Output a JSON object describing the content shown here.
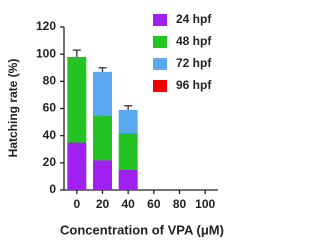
{
  "chart_data": {
    "type": "bar",
    "stacked": true,
    "x_label": "Concentration of VPA (μM)",
    "y_label": "Hatching rate (%)",
    "categories": [
      "0",
      "20",
      "40",
      "60",
      "80",
      "100"
    ],
    "series": [
      {
        "name": "24 hpf",
        "color": "#a020f0",
        "values": [
          35,
          22,
          15,
          0,
          0,
          0
        ],
        "errors": [
          7,
          4,
          3,
          null,
          null,
          null
        ]
      },
      {
        "name": "48 hpf",
        "color": "#22c322",
        "values": [
          63,
          33,
          27,
          0,
          0,
          0
        ],
        "errors": [
          5,
          3,
          3,
          null,
          null,
          null
        ]
      },
      {
        "name": "72 hpf",
        "color": "#5aa9f0",
        "values": [
          0,
          32,
          17,
          0,
          0,
          0
        ],
        "errors": [
          null,
          3,
          3,
          null,
          null,
          null
        ]
      },
      {
        "name": "96 hpf",
        "color": "#f00000",
        "values": [
          0,
          0,
          0,
          0,
          0,
          0
        ],
        "errors": [
          null,
          null,
          null,
          null,
          null,
          null
        ]
      }
    ],
    "ylim": [
      0,
      120
    ],
    "yticks": [
      0,
      20,
      40,
      60,
      80,
      100,
      120
    ],
    "legend": "upper right"
  }
}
